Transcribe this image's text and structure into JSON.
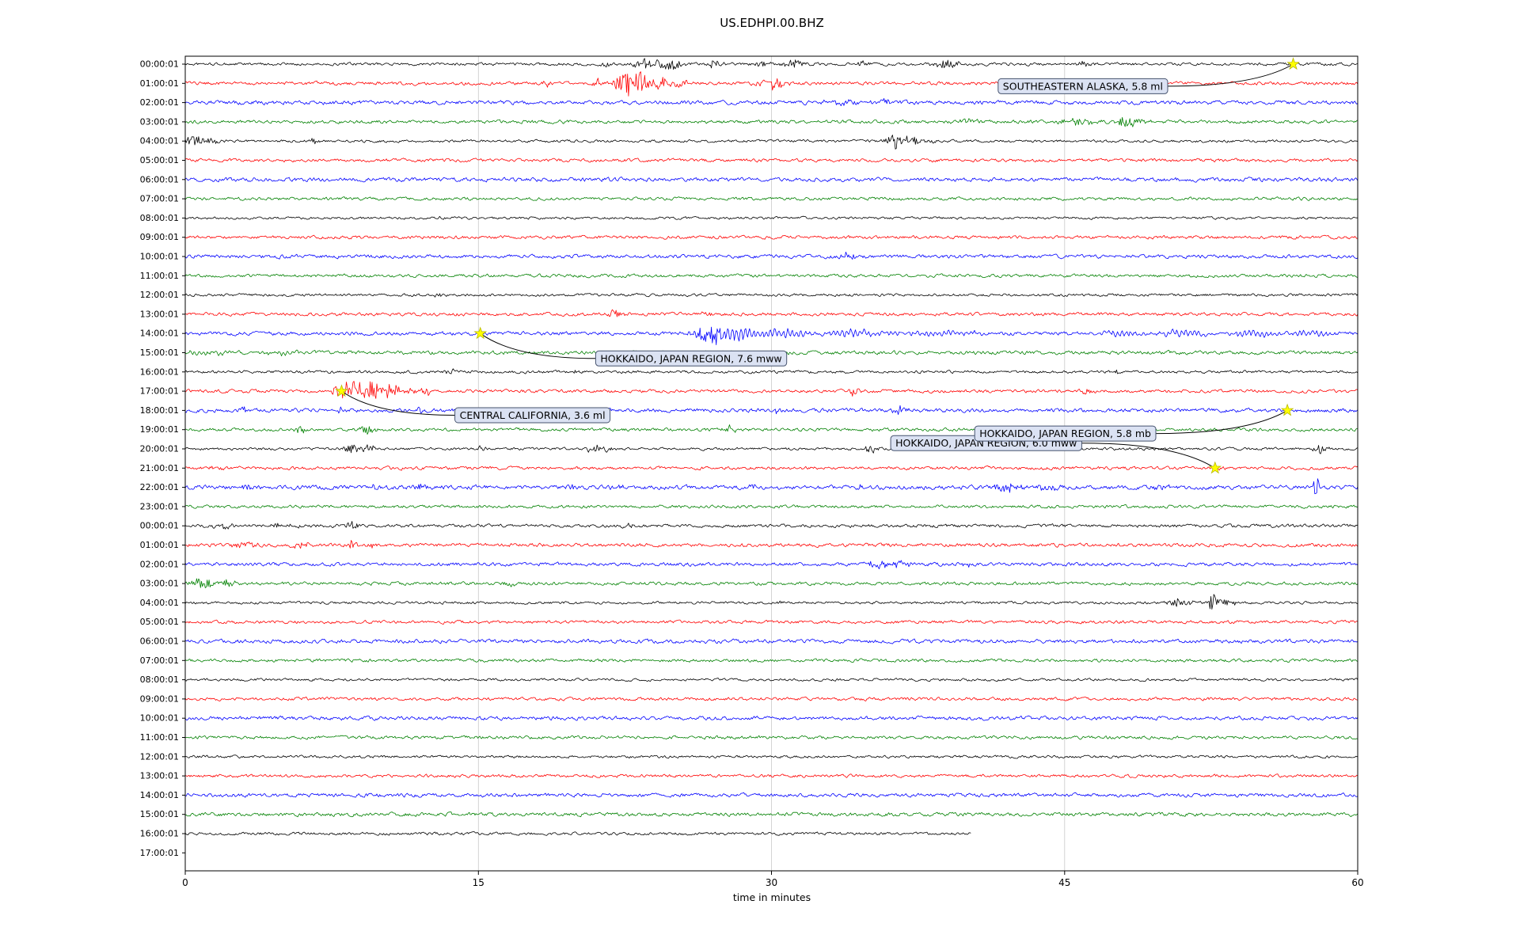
{
  "title": "US.EDHPI.00.BHZ",
  "chart_data": {
    "type": "line",
    "subtype": "seismogram-dayplot",
    "title": "US.EDHPI.00.BHZ",
    "xlabel": "time in minutes",
    "x_range": [
      0,
      60
    ],
    "x_ticks": [
      0,
      15,
      30,
      45,
      60
    ],
    "grid": true,
    "trace_color_cycle": [
      "black",
      "red",
      "blue",
      "green"
    ],
    "colors": {
      "black": "#000000",
      "red": "#ff0000",
      "blue": "#0000ff",
      "green": "#008000"
    },
    "star_color": "#ffff00",
    "label_box": {
      "fill": "#dbe2f3",
      "stroke": "#46536e"
    },
    "rows": [
      {
        "label": "00:00:01",
        "c": "black",
        "noise": 2.0,
        "end": 60,
        "bursts": [
          [
            21.5,
            3,
            0.4
          ],
          [
            23.6,
            6,
            0.9
          ],
          [
            24.6,
            7,
            1.2
          ],
          [
            27,
            4,
            0.7
          ],
          [
            29.5,
            3,
            0.6
          ],
          [
            31,
            5,
            1.0
          ],
          [
            34.7,
            4,
            0.4
          ],
          [
            39,
            5,
            1.2
          ],
          [
            46,
            4,
            0.5
          ],
          [
            56.7,
            3,
            0.3
          ]
        ]
      },
      {
        "label": "01:00:01",
        "c": "red",
        "noise": 2.4,
        "end": 60,
        "bursts": [
          [
            18.5,
            3,
            0.4
          ],
          [
            21.2,
            5,
            0.4
          ],
          [
            22.4,
            13,
            0.7
          ],
          [
            23.0,
            16,
            1.0
          ],
          [
            24.4,
            9,
            0.7
          ],
          [
            25.3,
            5,
            0.5
          ],
          [
            30.1,
            9,
            0.9
          ]
        ]
      },
      {
        "label": "02:00:01",
        "c": "blue",
        "noise": 2.8,
        "end": 60,
        "bursts": [
          [
            33.5,
            3,
            1.4
          ],
          [
            36,
            3,
            1.0
          ]
        ]
      },
      {
        "label": "03:00:01",
        "c": "green",
        "noise": 2.4,
        "end": 60,
        "bursts": [
          [
            40,
            3,
            1.0
          ],
          [
            45.6,
            4,
            1.4
          ],
          [
            48.2,
            8,
            0.7
          ],
          [
            49,
            4,
            0.6
          ]
        ]
      },
      {
        "label": "04:00:01",
        "c": "black",
        "noise": 1.9,
        "end": 60,
        "bursts": [
          [
            0.6,
            6,
            1.0
          ],
          [
            1.6,
            4,
            0.6
          ],
          [
            6.6,
            4,
            0.3
          ],
          [
            36.3,
            10,
            0.7
          ],
          [
            37.1,
            6,
            0.8
          ],
          [
            38,
            3,
            0.5
          ]
        ]
      },
      {
        "label": "05:00:01",
        "c": "red",
        "noise": 2.3,
        "end": 60,
        "bursts": []
      },
      {
        "label": "06:00:01",
        "c": "blue",
        "noise": 2.8,
        "end": 60,
        "bursts": []
      },
      {
        "label": "07:00:01",
        "c": "green",
        "noise": 2.2,
        "end": 60,
        "bursts": []
      },
      {
        "label": "08:00:01",
        "c": "black",
        "noise": 1.8,
        "end": 60,
        "bursts": [
          [
            13.2,
            2.5,
            0.3
          ]
        ]
      },
      {
        "label": "09:00:01",
        "c": "red",
        "noise": 2.3,
        "end": 60,
        "bursts": []
      },
      {
        "label": "10:00:01",
        "c": "blue",
        "noise": 2.6,
        "end": 60,
        "bursts": [
          [
            33.9,
            5,
            0.5
          ]
        ]
      },
      {
        "label": "11:00:01",
        "c": "green",
        "noise": 2.2,
        "end": 60,
        "bursts": []
      },
      {
        "label": "12:00:01",
        "c": "black",
        "noise": 1.9,
        "end": 60,
        "bursts": [
          [
            13,
            2.5,
            0.4
          ]
        ]
      },
      {
        "label": "13:00:01",
        "c": "red",
        "noise": 2.3,
        "end": 60,
        "bursts": [
          [
            21.9,
            4,
            0.8
          ],
          [
            26.6,
            3,
            0.5
          ]
        ]
      },
      {
        "label": "14:00:01",
        "c": "blue",
        "noise": 2.6,
        "end": 60,
        "bursts": [
          [
            26.9,
            14,
            1.2
          ],
          [
            28.2,
            9,
            2.0
          ],
          [
            30.5,
            6,
            2.5
          ],
          [
            34,
            4,
            3.0
          ],
          [
            39,
            3,
            3.0
          ],
          [
            48,
            3,
            2.0
          ],
          [
            51,
            3.5,
            2.5
          ],
          [
            54.5,
            3.5,
            2.5
          ],
          [
            57.5,
            3.5,
            2.0
          ]
        ]
      },
      {
        "label": "15:00:01",
        "c": "green",
        "noise": 2.6,
        "end": 60,
        "bursts": [
          [
            1,
            2,
            2
          ],
          [
            5,
            2,
            2
          ]
        ]
      },
      {
        "label": "16:00:01",
        "c": "black",
        "noise": 2.0,
        "end": 60,
        "bursts": [
          [
            13.6,
            3,
            0.4
          ],
          [
            20,
            2.5,
            0.3
          ],
          [
            47.6,
            2.5,
            0.3
          ]
        ]
      },
      {
        "label": "17:00:01",
        "c": "red",
        "noise": 2.3,
        "end": 60,
        "bursts": [
          [
            7.9,
            8,
            0.5
          ],
          [
            8.6,
            16,
            0.9
          ],
          [
            9.5,
            12,
            0.9
          ],
          [
            10.6,
            8,
            0.8
          ],
          [
            11.6,
            5,
            0.6
          ],
          [
            12.4,
            4,
            0.5
          ],
          [
            34.2,
            7,
            0.4
          ],
          [
            46.2,
            6,
            0.4
          ]
        ]
      },
      {
        "label": "18:00:01",
        "c": "blue",
        "noise": 2.7,
        "end": 60,
        "bursts": [
          [
            2.9,
            5,
            0.4
          ],
          [
            7.9,
            4,
            0.3
          ],
          [
            12,
            3,
            0.3
          ],
          [
            30.2,
            4,
            0.4
          ],
          [
            36.6,
            5,
            0.5
          ]
        ]
      },
      {
        "label": "19:00:01",
        "c": "green",
        "noise": 2.2,
        "end": 60,
        "bursts": [
          [
            5.9,
            5,
            0.5
          ],
          [
            9.3,
            6,
            0.6
          ],
          [
            17,
            3,
            0.3
          ],
          [
            27.9,
            5,
            0.5
          ]
        ]
      },
      {
        "label": "20:00:01",
        "c": "black",
        "noise": 1.9,
        "end": 60,
        "bursts": [
          [
            8.6,
            6,
            0.7
          ],
          [
            9.4,
            4,
            0.5
          ],
          [
            15.1,
            3.5,
            0.4
          ],
          [
            20.9,
            5,
            0.6
          ],
          [
            21.6,
            4,
            0.5
          ],
          [
            35.1,
            5,
            0.5
          ],
          [
            43,
            2.5,
            0.3
          ],
          [
            58.1,
            6,
            0.5
          ]
        ]
      },
      {
        "label": "21:00:01",
        "c": "red",
        "noise": 2.3,
        "end": 60,
        "bursts": [
          [
            1.5,
            3,
            0.5
          ],
          [
            52.7,
            2.5,
            0.3
          ]
        ]
      },
      {
        "label": "22:00:01",
        "c": "blue",
        "noise": 3.0,
        "end": 60,
        "bursts": [
          [
            2.9,
            5,
            0.6
          ],
          [
            9.8,
            5,
            0.4
          ],
          [
            12.1,
            4,
            0.6
          ],
          [
            13.3,
            4,
            0.5
          ],
          [
            19.9,
            4,
            0.4
          ],
          [
            22.1,
            3.5,
            0.5
          ],
          [
            29,
            3.5,
            0.4
          ],
          [
            34.6,
            4,
            0.5
          ],
          [
            42,
            5,
            1.2
          ],
          [
            44,
            4,
            0.9
          ],
          [
            50,
            3.5,
            0.5
          ],
          [
            57.9,
            13,
            0.25
          ]
        ]
      },
      {
        "label": "23:00:01",
        "c": "green",
        "noise": 2.2,
        "end": 60,
        "bursts": []
      },
      {
        "label": "00:00:01",
        "c": "black",
        "noise": 2.3,
        "end": 60,
        "bursts": [
          [
            2,
            2.5,
            1
          ],
          [
            5,
            2.5,
            1
          ],
          [
            8.5,
            5,
            0.5
          ],
          [
            22.7,
            4,
            0.5
          ]
        ]
      },
      {
        "label": "01:00:01",
        "c": "red",
        "noise": 2.5,
        "end": 60,
        "bursts": [
          [
            3,
            3,
            1
          ],
          [
            6,
            3,
            0.8
          ],
          [
            8.6,
            10,
            0.35
          ],
          [
            9.6,
            4,
            0.5
          ]
        ]
      },
      {
        "label": "02:00:01",
        "c": "blue",
        "noise": 2.5,
        "end": 60,
        "bursts": [
          [
            35.4,
            6,
            0.7
          ],
          [
            36.7,
            5,
            0.7
          ],
          [
            40,
            3,
            0.4
          ]
        ]
      },
      {
        "label": "03:00:01",
        "c": "green",
        "noise": 2.3,
        "end": 60,
        "bursts": [
          [
            0.9,
            6,
            1.0
          ],
          [
            2.2,
            4,
            0.7
          ],
          [
            16.6,
            3,
            0.4
          ]
        ]
      },
      {
        "label": "04:00:01",
        "c": "black",
        "noise": 1.9,
        "end": 60,
        "bursts": [
          [
            30.6,
            2.5,
            0.3
          ],
          [
            50.9,
            5,
            0.9
          ],
          [
            52.6,
            12,
            0.35
          ],
          [
            53.3,
            5,
            0.6
          ]
        ]
      },
      {
        "label": "05:00:01",
        "c": "red",
        "noise": 2.2,
        "end": 60,
        "bursts": []
      },
      {
        "label": "06:00:01",
        "c": "blue",
        "noise": 2.7,
        "end": 60,
        "bursts": []
      },
      {
        "label": "07:00:01",
        "c": "green",
        "noise": 2.2,
        "end": 60,
        "bursts": []
      },
      {
        "label": "08:00:01",
        "c": "black",
        "noise": 1.8,
        "end": 60,
        "bursts": []
      },
      {
        "label": "09:00:01",
        "c": "red",
        "noise": 2.2,
        "end": 60,
        "bursts": []
      },
      {
        "label": "10:00:01",
        "c": "blue",
        "noise": 2.6,
        "end": 60,
        "bursts": []
      },
      {
        "label": "11:00:01",
        "c": "green",
        "noise": 2.3,
        "end": 60,
        "bursts": []
      },
      {
        "label": "12:00:01",
        "c": "black",
        "noise": 1.9,
        "end": 60,
        "bursts": []
      },
      {
        "label": "13:00:01",
        "c": "red",
        "noise": 2.2,
        "end": 60,
        "bursts": []
      },
      {
        "label": "14:00:01",
        "c": "blue",
        "noise": 2.6,
        "end": 60,
        "bursts": []
      },
      {
        "label": "15:00:01",
        "c": "green",
        "noise": 2.6,
        "end": 60,
        "bursts": []
      },
      {
        "label": "16:00:01",
        "c": "black",
        "noise": 2.0,
        "end": 40.2,
        "bursts": []
      },
      {
        "label": "17:00:01",
        "c": "red",
        "noise": 0,
        "end": 0,
        "bursts": []
      }
    ],
    "annotations": [
      {
        "text": "SOUTHEASTERN ALASKA, 5.8 ml",
        "star": {
          "row": 0,
          "t": 56.7
        },
        "box": {
          "t": 41.6,
          "row": 1.15
        }
      },
      {
        "text": "HOKKAIDO, JAPAN REGION, 7.6 mww",
        "star": {
          "row": 14,
          "t": 15.1
        },
        "box": {
          "t": 21.0,
          "row": 15.3
        }
      },
      {
        "text": "CENTRAL CALIFORNIA, 3.6 ml",
        "star": {
          "row": 17,
          "t": 8.0
        },
        "box": {
          "t": 13.8,
          "row": 18.25
        }
      },
      {
        "text": "HOKKAIDO, JAPAN REGION, 6.0 mww",
        "star": {
          "row": 21,
          "t": 52.7
        },
        "box": {
          "t": 36.1,
          "row": 19.7
        }
      },
      {
        "text": "HOKKAIDO, JAPAN REGION, 5.8 mb",
        "star": {
          "row": 18,
          "t": 56.4
        },
        "box": {
          "t": 40.4,
          "row": 19.2
        }
      }
    ]
  }
}
